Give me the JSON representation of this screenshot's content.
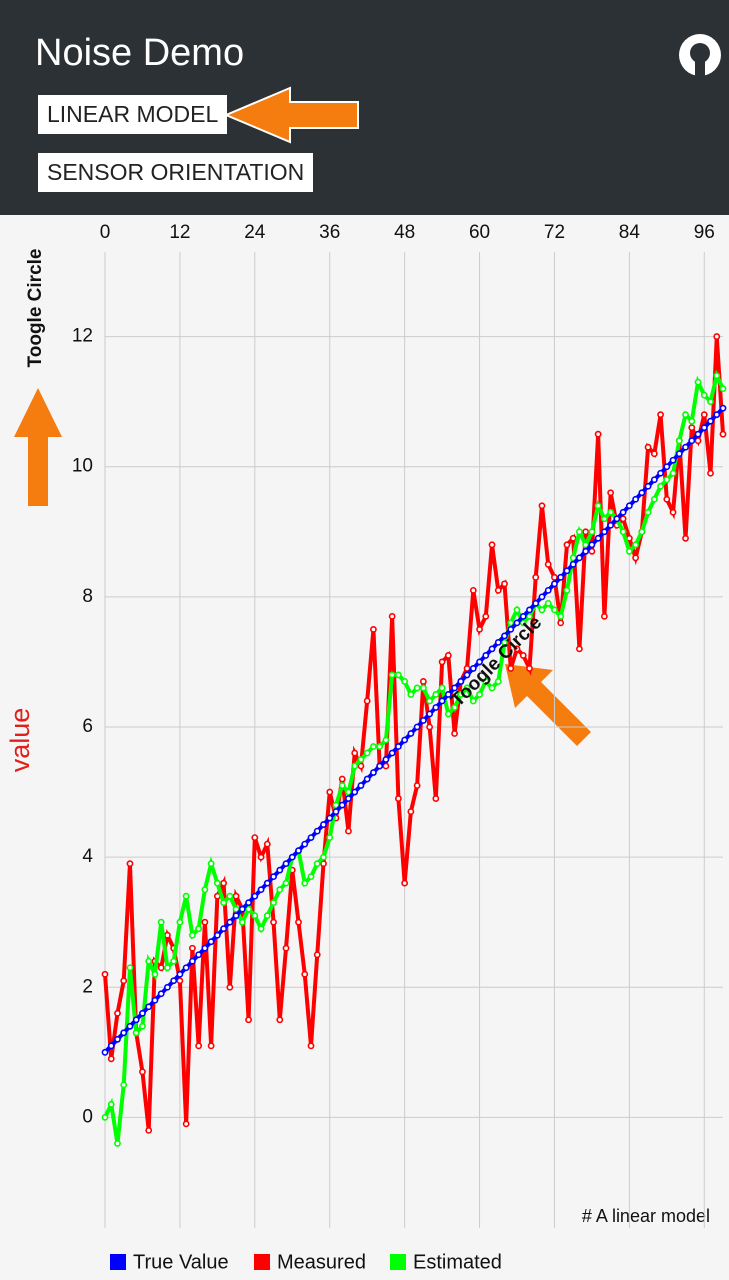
{
  "app_bar": {
    "title": "Noise Demo",
    "buttons": [
      "LINEAR MODEL",
      "SENSOR ORIENTATION"
    ]
  },
  "chart_data": {
    "type": "line",
    "y_label": "value",
    "description": "# A linear model",
    "annotations": [
      "Toogle Circle",
      "Toogle Circle"
    ],
    "x_axis_position": "top",
    "grid": true,
    "legend": "bottom",
    "markers": true,
    "x": [
      0,
      1,
      2,
      3,
      4,
      5,
      6,
      7,
      8,
      9,
      10,
      11,
      12,
      13,
      14,
      15,
      16,
      17,
      18,
      19,
      20,
      21,
      22,
      23,
      24,
      25,
      26,
      27,
      28,
      29,
      30,
      31,
      32,
      33,
      34,
      35,
      36,
      37,
      38,
      39,
      40,
      41,
      42,
      43,
      44,
      45,
      46,
      47,
      48,
      49,
      50,
      51,
      52,
      53,
      54,
      55,
      56,
      57,
      58,
      59,
      60,
      61,
      62,
      63,
      64,
      65,
      66,
      67,
      68,
      69,
      70,
      71,
      72,
      73,
      74,
      75,
      76,
      77,
      78,
      79,
      80,
      81,
      82,
      83,
      84,
      85,
      86,
      87,
      88,
      89,
      90,
      91,
      92,
      93,
      94,
      95,
      96,
      97,
      98,
      99
    ],
    "xlim": [
      0,
      99
    ],
    "xticks": [
      0,
      12,
      24,
      36,
      48,
      60,
      72,
      84,
      96
    ],
    "ylim": [
      -1.7,
      13.3
    ],
    "yticks": [
      0,
      2,
      4,
      6,
      8,
      10,
      12
    ],
    "series": [
      {
        "name": "True Value",
        "color": "#0000ff",
        "values": [
          1.0,
          1.1,
          1.2,
          1.3,
          1.4,
          1.5,
          1.6,
          1.7,
          1.8,
          1.9,
          2.0,
          2.1,
          2.2,
          2.3,
          2.4,
          2.5,
          2.6,
          2.7,
          2.8,
          2.9,
          3.0,
          3.1,
          3.2,
          3.3,
          3.4,
          3.5,
          3.6,
          3.7,
          3.8,
          3.9,
          4.0,
          4.1,
          4.2,
          4.3,
          4.4,
          4.5,
          4.6,
          4.7,
          4.8,
          4.9,
          5.0,
          5.1,
          5.2,
          5.3,
          5.4,
          5.5,
          5.6,
          5.7,
          5.8,
          5.9,
          6.0,
          6.1,
          6.2,
          6.3,
          6.4,
          6.5,
          6.6,
          6.7,
          6.8,
          6.9,
          7.0,
          7.1,
          7.2,
          7.3,
          7.4,
          7.5,
          7.6,
          7.7,
          7.8,
          7.9,
          8.0,
          8.1,
          8.2,
          8.3,
          8.4,
          8.5,
          8.6,
          8.7,
          8.8,
          8.9,
          9.0,
          9.1,
          9.2,
          9.3,
          9.4,
          9.5,
          9.6,
          9.7,
          9.8,
          9.9,
          10.0,
          10.1,
          10.2,
          10.3,
          10.4,
          10.5,
          10.6,
          10.7,
          10.8,
          10.9
        ]
      },
      {
        "name": "Measured",
        "color": "#ff0000",
        "values": [
          2.2,
          0.9,
          1.6,
          2.1,
          3.9,
          1.3,
          0.7,
          -0.2,
          2.4,
          2.3,
          2.8,
          2.6,
          2.1,
          -0.1,
          2.6,
          1.1,
          3.0,
          1.1,
          3.4,
          3.6,
          2.0,
          3.4,
          3.2,
          1.5,
          4.3,
          4.0,
          4.2,
          3.0,
          1.5,
          2.6,
          3.8,
          3.0,
          2.2,
          1.1,
          2.5,
          3.9,
          5.0,
          4.6,
          5.2,
          4.4,
          5.6,
          5.4,
          6.4,
          7.5,
          5.4,
          5.4,
          7.7,
          4.9,
          3.6,
          4.7,
          5.1,
          6.7,
          6.0,
          4.9,
          7.0,
          7.1,
          5.9,
          6.7,
          6.9,
          8.1,
          7.5,
          7.7,
          8.8,
          8.1,
          8.2,
          6.9,
          7.2,
          7.1,
          6.9,
          8.3,
          9.4,
          8.5,
          8.3,
          7.6,
          8.8,
          8.9,
          7.2,
          9.0,
          8.7,
          10.5,
          7.7,
          9.6,
          9.1,
          9.2,
          8.9,
          8.6,
          9.0,
          10.3,
          10.2,
          10.8,
          9.5,
          9.3,
          10.4,
          8.9,
          10.6,
          10.4,
          10.8,
          9.9,
          12.0,
          10.5
        ]
      },
      {
        "name": "Estimated",
        "color": "#00ff00",
        "values": [
          0.0,
          0.2,
          -0.4,
          0.5,
          2.3,
          1.3,
          1.4,
          2.4,
          2.2,
          3.0,
          2.3,
          2.4,
          3.0,
          3.4,
          2.8,
          2.9,
          3.5,
          3.9,
          3.6,
          3.3,
          3.4,
          3.2,
          3.0,
          3.2,
          3.1,
          2.9,
          3.1,
          3.3,
          3.5,
          3.6,
          4.0,
          4.1,
          3.6,
          3.7,
          3.9,
          4.0,
          4.3,
          4.8,
          5.1,
          5.0,
          5.4,
          5.5,
          5.6,
          5.7,
          5.7,
          5.8,
          6.8,
          6.8,
          6.7,
          6.5,
          6.6,
          6.6,
          6.4,
          6.5,
          6.6,
          6.2,
          6.3,
          6.5,
          6.6,
          6.4,
          6.5,
          6.7,
          6.6,
          6.7,
          7.3,
          7.6,
          7.8,
          7.6,
          7.7,
          7.9,
          7.8,
          7.9,
          7.8,
          7.7,
          8.1,
          8.6,
          9.0,
          8.8,
          9.0,
          9.4,
          9.2,
          9.3,
          9.2,
          9.0,
          8.7,
          8.8,
          9.0,
          9.3,
          9.5,
          9.7,
          9.8,
          9.9,
          10.4,
          10.8,
          10.7,
          11.3,
          11.1,
          11.0,
          11.4,
          11.2
        ]
      }
    ]
  }
}
